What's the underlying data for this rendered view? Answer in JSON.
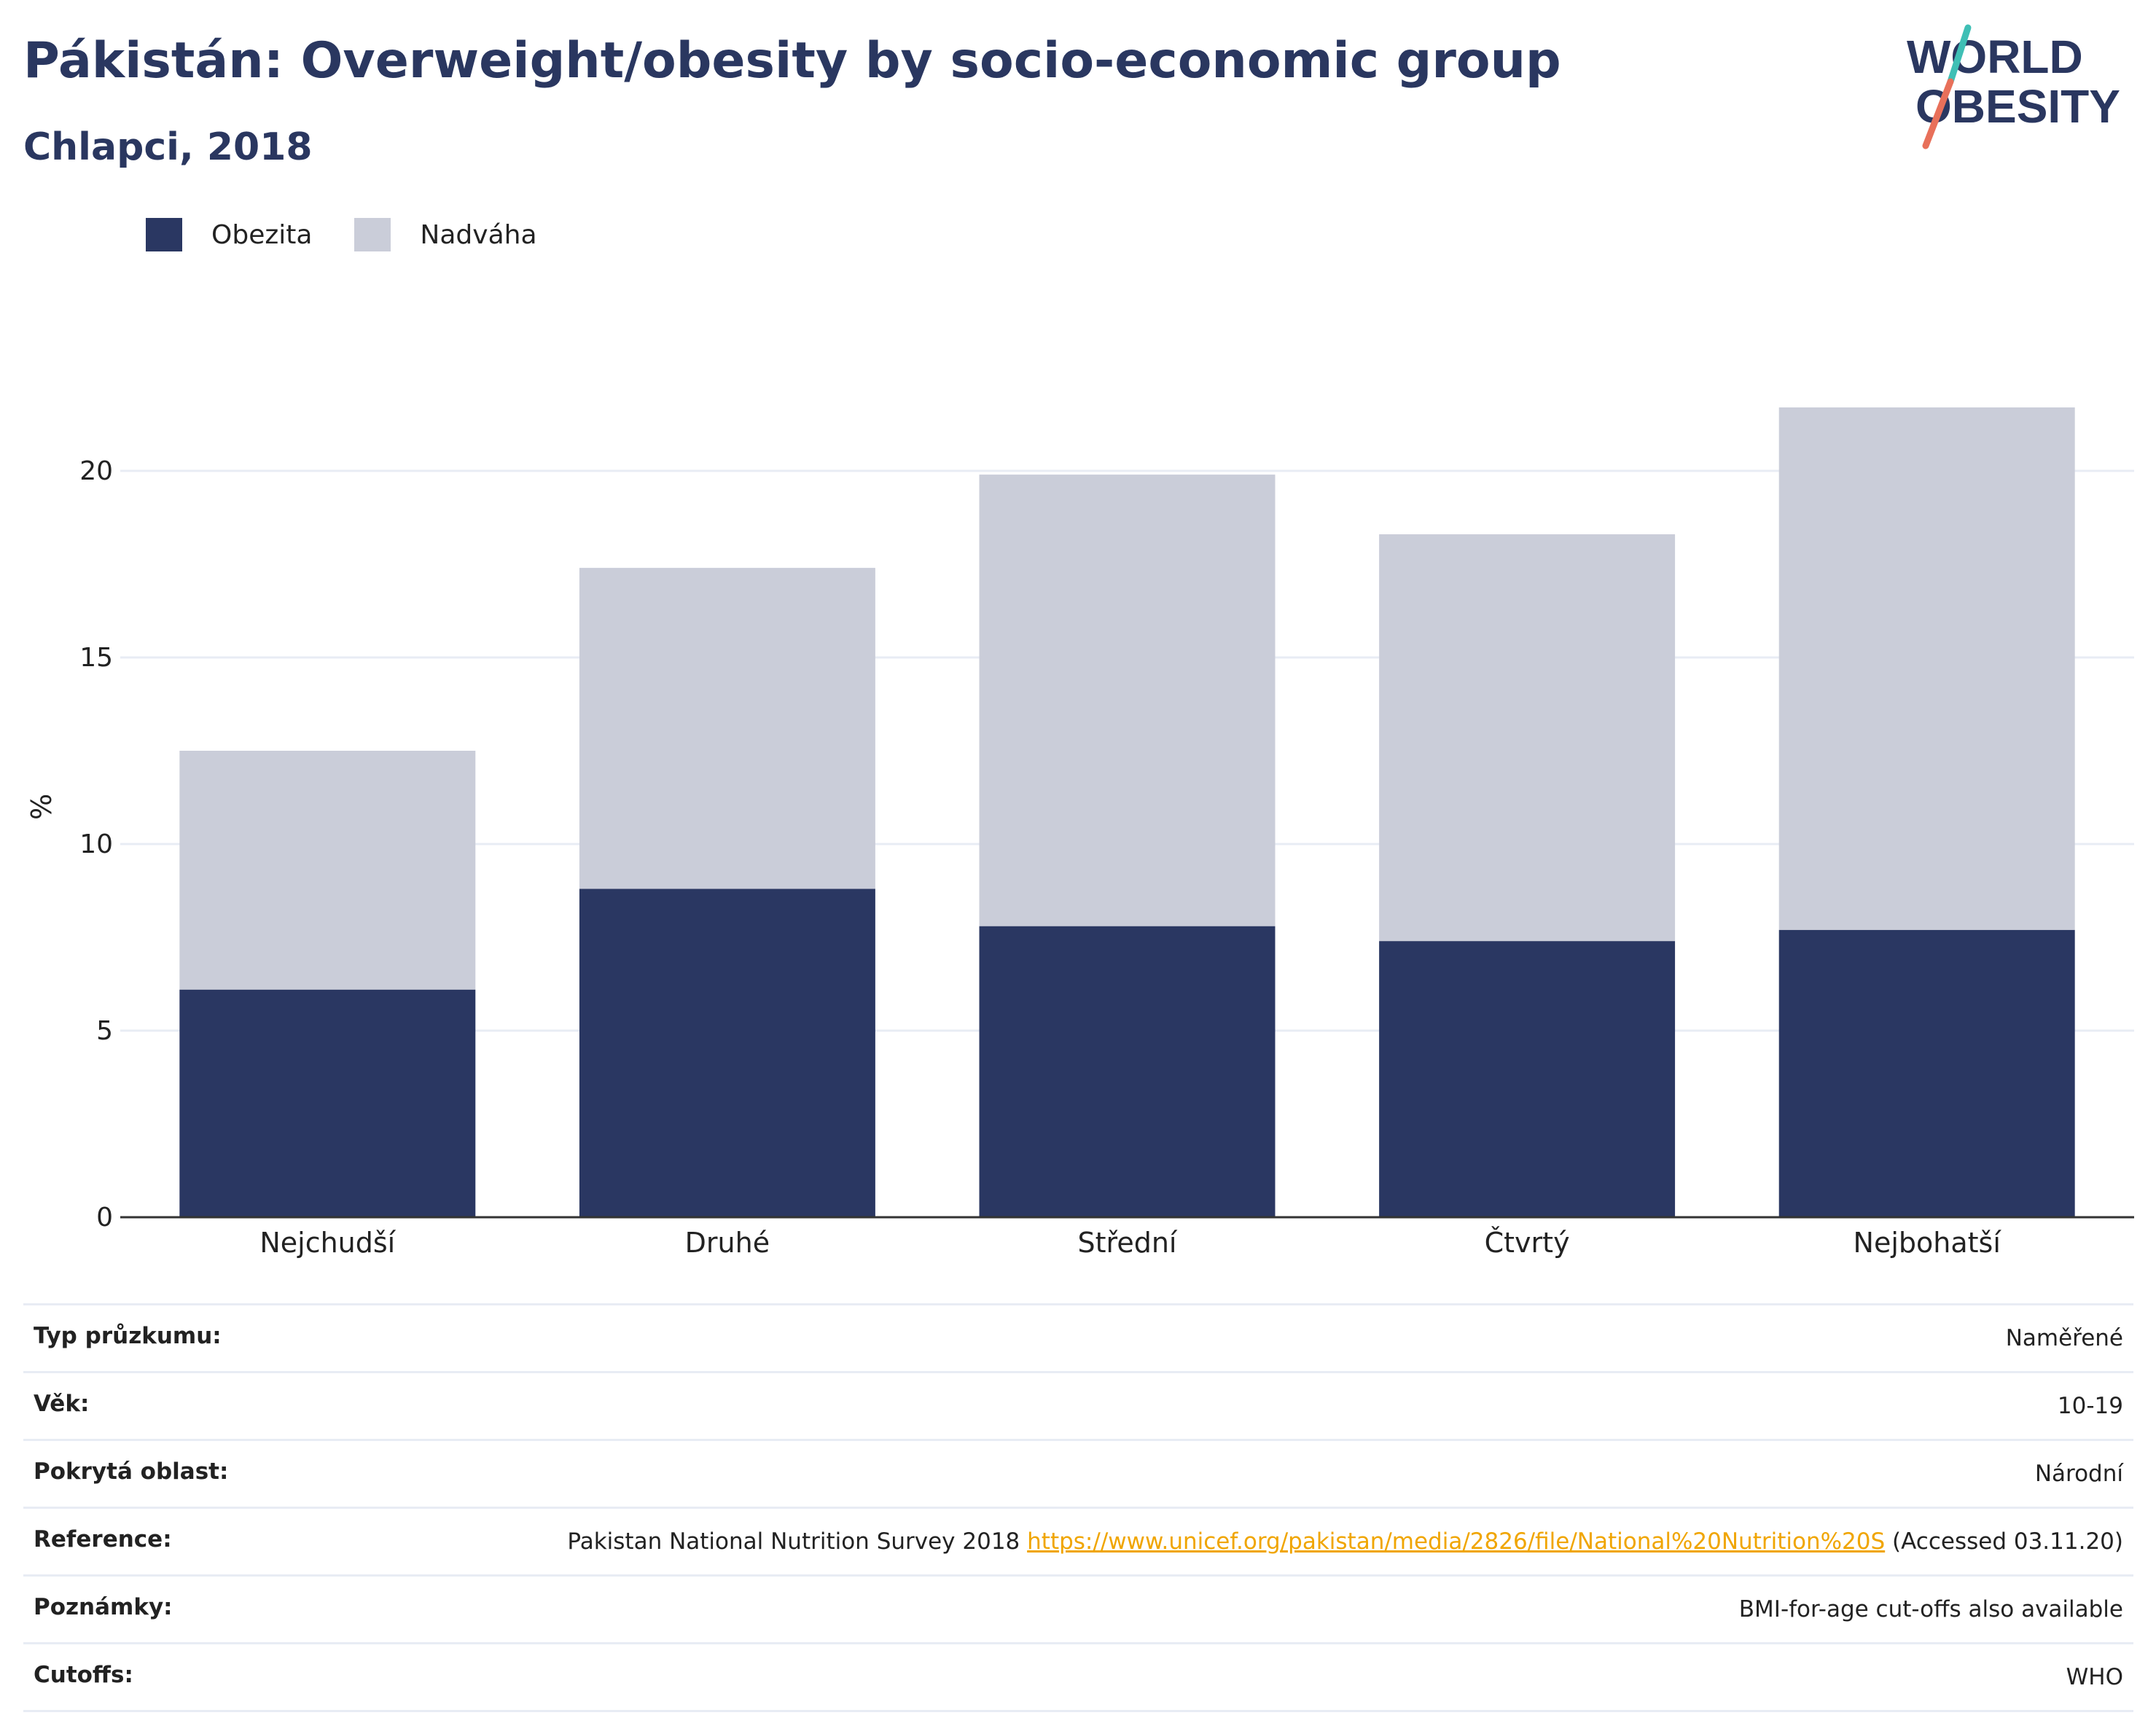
{
  "header": {
    "title": "Pákistán: Overweight/obesity by socio-economic group",
    "subtitle": "Chlapci, 2018"
  },
  "logo": {
    "line1": "WORLD",
    "line2": "OBESITY"
  },
  "colors": {
    "obesity": "#2a3762",
    "overweight": "#cacdd9",
    "title": "#2a3760",
    "link": "#f0a500",
    "grid": "#e8ecf4"
  },
  "chart_data": {
    "type": "bar",
    "stacked": true,
    "categories": [
      "Nejchudší",
      "Druhé",
      "Střední",
      "Čtvrtý",
      "Nejbohatší"
    ],
    "series": [
      {
        "name": "Obezita",
        "values": [
          6.1,
          8.8,
          7.8,
          7.4,
          7.7
        ]
      },
      {
        "name": "Nadváha",
        "values": [
          6.4,
          8.6,
          12.1,
          10.9,
          14.0
        ]
      }
    ],
    "ylabel": "%",
    "ylim": [
      0,
      22
    ],
    "yticks": [
      0,
      5,
      10,
      15,
      20
    ],
    "grid": true,
    "legend_position": "top-left"
  },
  "details": {
    "rows": [
      {
        "label": "Typ průzkumu:",
        "value": "Naměřené"
      },
      {
        "label": "Věk:",
        "value": "10-19"
      },
      {
        "label": "Pokrytá oblast:",
        "value": "Národní"
      },
      {
        "label": "Reference:",
        "value_prefix": "Pakistan National Nutrition Survey 2018",
        "link": "https://www.unicef.org/pakistan/media/2826/file/National%20Nutrition%20S",
        "value_suffix": "(Accessed 03.11.20)"
      },
      {
        "label": "Poznámky:",
        "value": "BMI-for-age cut-offs also available"
      },
      {
        "label": "Cutoffs:",
        "value": "WHO"
      }
    ]
  }
}
